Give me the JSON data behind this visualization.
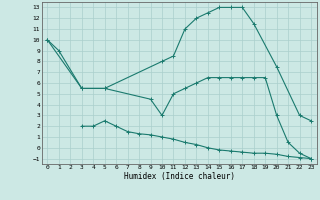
{
  "xlabel": "Humidex (Indice chaleur)",
  "bg_color": "#cce8e4",
  "grid_color": "#aacfcc",
  "line_color": "#1a7a6e",
  "xlim": [
    -0.5,
    23.5
  ],
  "ylim": [
    -1.5,
    13.5
  ],
  "xticks": [
    0,
    1,
    2,
    3,
    4,
    5,
    6,
    7,
    8,
    9,
    10,
    11,
    12,
    13,
    14,
    15,
    16,
    17,
    18,
    19,
    20,
    21,
    22,
    23
  ],
  "yticks": [
    -1,
    0,
    1,
    2,
    3,
    4,
    5,
    6,
    7,
    8,
    9,
    10,
    11,
    12,
    13
  ],
  "curve1_x": [
    0,
    1,
    3,
    5,
    10,
    11,
    12,
    13,
    14,
    15,
    16,
    17,
    18,
    20,
    22,
    23
  ],
  "curve1_y": [
    10,
    9,
    5.5,
    5.5,
    8.0,
    8.5,
    11,
    12,
    12.5,
    13,
    13,
    13,
    11.5,
    7.5,
    3.0,
    2.5
  ],
  "curve2_x": [
    0,
    3,
    5,
    9,
    10,
    11,
    12,
    13,
    14,
    15,
    16,
    17,
    18,
    19,
    20,
    21,
    22,
    23
  ],
  "curve2_y": [
    10,
    5.5,
    5.5,
    4.5,
    3.0,
    5.0,
    5.5,
    6.0,
    6.5,
    6.5,
    6.5,
    6.5,
    6.5,
    6.5,
    3.0,
    0.5,
    -0.5,
    -1.0
  ],
  "curve3_x": [
    3,
    4,
    5,
    6,
    7,
    8,
    9,
    10,
    11,
    12,
    13,
    14,
    15,
    16,
    17,
    18,
    19,
    20,
    21,
    22,
    23
  ],
  "curve3_y": [
    2.0,
    2.0,
    2.5,
    2.0,
    1.5,
    1.3,
    1.2,
    1.0,
    0.8,
    0.5,
    0.3,
    0.0,
    -0.2,
    -0.3,
    -0.4,
    -0.5,
    -0.5,
    -0.6,
    -0.8,
    -0.9,
    -1.0
  ]
}
